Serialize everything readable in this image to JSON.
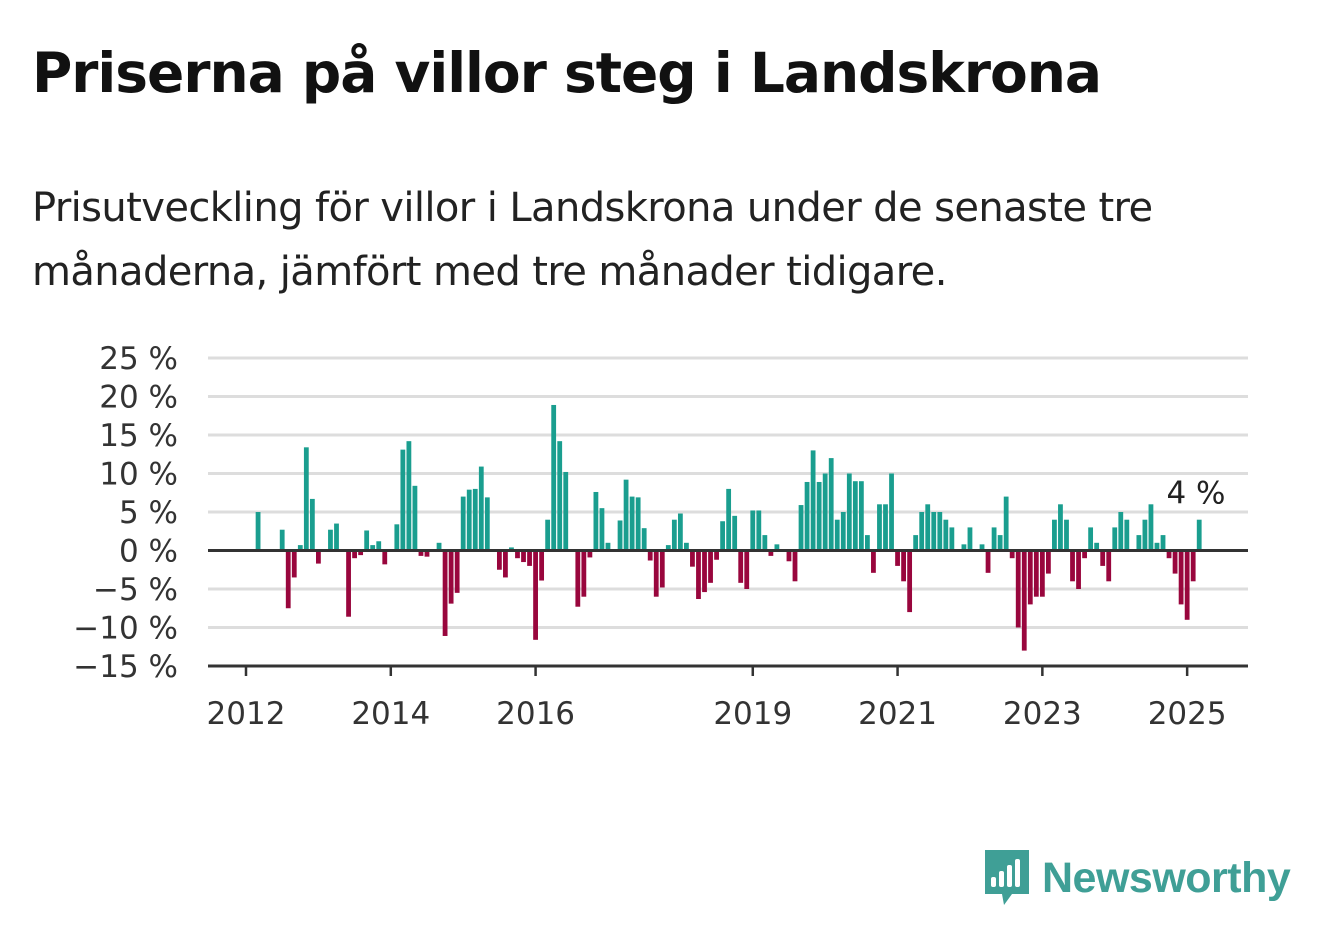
{
  "header": {
    "title": "Priserna på villor steg i Landskrona",
    "subtitle": "Prisutveckling för villor i Landskrona under de senaste tre månaderna, jämfört med tre månader tidigare."
  },
  "brand": {
    "name": "Newsworthy",
    "icon": "newsworthy-logo-icon"
  },
  "colors": {
    "positive": "#1a9e8f",
    "negative": "#99063d",
    "grid": "#dddddd",
    "axis": "#333333",
    "brand": "#3f9f96"
  },
  "chart_data": {
    "type": "bar",
    "title": "",
    "xlabel": "",
    "ylabel": "",
    "ylim": [
      -15,
      25
    ],
    "y_ticks": [
      25,
      20,
      15,
      10,
      5,
      0,
      -5,
      -10,
      -15
    ],
    "y_tick_labels": [
      "25 %",
      "20 %",
      "15 %",
      "10 %",
      "5 %",
      "0 %",
      "−5 %",
      "−10 %",
      "−15 %"
    ],
    "x_ticks": [
      2012,
      2014,
      2016,
      2019,
      2021,
      2023,
      2025
    ],
    "x_tick_labels": [
      "2012",
      "2014",
      "2016",
      "2019",
      "2021",
      "2023",
      "2025"
    ],
    "grid": true,
    "last_value_label": "4 %",
    "series": [
      {
        "points": [
          [
            "2012-03",
            5.0
          ],
          [
            "2012-07",
            2.7
          ],
          [
            "2012-08",
            -7.5
          ],
          [
            "2012-09",
            -3.5
          ],
          [
            "2012-10",
            0.7
          ],
          [
            "2012-11",
            13.4
          ],
          [
            "2012-12",
            6.7
          ],
          [
            "2013-01",
            -1.7
          ],
          [
            "2013-03",
            2.7
          ],
          [
            "2013-04",
            3.5
          ],
          [
            "2013-06",
            -8.6
          ],
          [
            "2013-07",
            -1.0
          ],
          [
            "2013-08",
            -0.6
          ],
          [
            "2013-09",
            2.6
          ],
          [
            "2013-10",
            0.7
          ],
          [
            "2013-11",
            1.2
          ],
          [
            "2013-12",
            -1.8
          ],
          [
            "2014-02",
            3.4
          ],
          [
            "2014-03",
            13.1
          ],
          [
            "2014-04",
            14.2
          ],
          [
            "2014-05",
            8.4
          ],
          [
            "2014-06",
            -0.7
          ],
          [
            "2014-07",
            -0.8
          ],
          [
            "2014-09",
            1.0
          ],
          [
            "2014-10",
            -11.1
          ],
          [
            "2014-11",
            -6.9
          ],
          [
            "2014-12",
            -5.5
          ],
          [
            "2015-01",
            7.0
          ],
          [
            "2015-02",
            7.9
          ],
          [
            "2015-03",
            8.0
          ],
          [
            "2015-04",
            10.9
          ],
          [
            "2015-05",
            6.9
          ],
          [
            "2015-07",
            -2.5
          ],
          [
            "2015-08",
            -3.5
          ],
          [
            "2015-09",
            0.4
          ],
          [
            "2015-10",
            -1.0
          ],
          [
            "2015-11",
            -1.5
          ],
          [
            "2015-12",
            -2.0
          ],
          [
            "2016-01",
            -11.6
          ],
          [
            "2016-02",
            -3.9
          ],
          [
            "2016-03",
            4.0
          ],
          [
            "2016-04",
            18.9
          ],
          [
            "2016-05",
            14.2
          ],
          [
            "2016-06",
            10.2
          ],
          [
            "2016-08",
            -7.3
          ],
          [
            "2016-09",
            -6.0
          ],
          [
            "2016-10",
            -0.9
          ],
          [
            "2016-11",
            7.6
          ],
          [
            "2016-12",
            5.5
          ],
          [
            "2017-01",
            1.0
          ],
          [
            "2017-03",
            3.9
          ],
          [
            "2017-04",
            9.2
          ],
          [
            "2017-05",
            7.0
          ],
          [
            "2017-06",
            6.9
          ],
          [
            "2017-07",
            2.9
          ],
          [
            "2017-08",
            -1.3
          ],
          [
            "2017-09",
            -6.0
          ],
          [
            "2017-10",
            -4.8
          ],
          [
            "2017-11",
            0.7
          ],
          [
            "2017-12",
            4.0
          ],
          [
            "2018-01",
            4.8
          ],
          [
            "2018-02",
            1.0
          ],
          [
            "2018-03",
            -2.1
          ],
          [
            "2018-04",
            -6.3
          ],
          [
            "2018-05",
            -5.4
          ],
          [
            "2018-06",
            -4.2
          ],
          [
            "2018-07",
            -1.2
          ],
          [
            "2018-08",
            3.8
          ],
          [
            "2018-09",
            8.0
          ],
          [
            "2018-10",
            4.5
          ],
          [
            "2018-11",
            -4.2
          ],
          [
            "2018-12",
            -5.0
          ],
          [
            "2019-01",
            5.2
          ],
          [
            "2019-02",
            5.2
          ],
          [
            "2019-03",
            2.0
          ],
          [
            "2019-04",
            -0.7
          ],
          [
            "2019-05",
            0.8
          ],
          [
            "2019-07",
            -1.4
          ],
          [
            "2019-08",
            -4.0
          ],
          [
            "2019-09",
            5.9
          ],
          [
            "2019-10",
            8.9
          ],
          [
            "2019-11",
            13.0
          ],
          [
            "2019-12",
            8.9
          ],
          [
            "2020-01",
            10.0
          ],
          [
            "2020-02",
            12.0
          ],
          [
            "2020-03",
            4.0
          ],
          [
            "2020-04",
            5.0
          ],
          [
            "2020-05",
            10.0
          ],
          [
            "2020-06",
            9.0
          ],
          [
            "2020-07",
            9.0
          ],
          [
            "2020-08",
            2.0
          ],
          [
            "2020-09",
            -2.9
          ],
          [
            "2020-10",
            6.0
          ],
          [
            "2020-11",
            6.0
          ],
          [
            "2020-12",
            10.0
          ],
          [
            "2021-01",
            -2.0
          ],
          [
            "2021-02",
            -4.0
          ],
          [
            "2021-03",
            -8.0
          ],
          [
            "2021-04",
            2.0
          ],
          [
            "2021-05",
            5.0
          ],
          [
            "2021-06",
            6.0
          ],
          [
            "2021-07",
            5.0
          ],
          [
            "2021-08",
            5.0
          ],
          [
            "2021-09",
            4.0
          ],
          [
            "2021-10",
            3.0
          ],
          [
            "2021-12",
            0.8
          ],
          [
            "2022-01",
            3.0
          ],
          [
            "2022-03",
            0.8
          ],
          [
            "2022-04",
            -2.9
          ],
          [
            "2022-05",
            3.0
          ],
          [
            "2022-06",
            2.0
          ],
          [
            "2022-07",
            7.0
          ],
          [
            "2022-08",
            -1.0
          ],
          [
            "2022-09",
            -10.0
          ],
          [
            "2022-10",
            -13.0
          ],
          [
            "2022-11",
            -7.0
          ],
          [
            "2022-12",
            -6.0
          ],
          [
            "2023-01",
            -6.0
          ],
          [
            "2023-02",
            -3.0
          ],
          [
            "2023-03",
            4.0
          ],
          [
            "2023-04",
            6.0
          ],
          [
            "2023-05",
            4.0
          ],
          [
            "2023-06",
            -4.0
          ],
          [
            "2023-07",
            -5.0
          ],
          [
            "2023-08",
            -1.0
          ],
          [
            "2023-09",
            3.0
          ],
          [
            "2023-10",
            1.0
          ],
          [
            "2023-11",
            -2.0
          ],
          [
            "2023-12",
            -4.0
          ],
          [
            "2024-01",
            3.0
          ],
          [
            "2024-02",
            5.0
          ],
          [
            "2024-03",
            4.0
          ],
          [
            "2024-05",
            2.0
          ],
          [
            "2024-06",
            4.0
          ],
          [
            "2024-07",
            6.0
          ],
          [
            "2024-08",
            1.0
          ],
          [
            "2024-09",
            2.0
          ],
          [
            "2024-10",
            -1.0
          ],
          [
            "2024-11",
            -3.0
          ],
          [
            "2024-12",
            -7.0
          ],
          [
            "2025-01",
            -9.0
          ],
          [
            "2025-02",
            -4.0
          ],
          [
            "2025-03",
            4.0
          ]
        ]
      }
    ]
  }
}
